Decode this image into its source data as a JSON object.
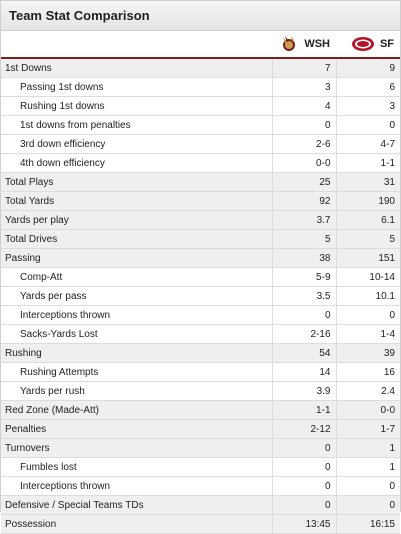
{
  "title": "Team Stat Comparison",
  "teams": [
    {
      "abbr": "WSH",
      "logo": "redskins-logo-icon"
    },
    {
      "abbr": "SF",
      "logo": "49ers-logo-icon"
    }
  ],
  "rows": [
    {
      "label": "1st Downs",
      "main": true,
      "wsh": "7",
      "sf": "9"
    },
    {
      "label": "Passing 1st downs",
      "main": false,
      "wsh": "3",
      "sf": "6"
    },
    {
      "label": "Rushing 1st downs",
      "main": false,
      "wsh": "4",
      "sf": "3"
    },
    {
      "label": "1st downs from penalties",
      "main": false,
      "wsh": "0",
      "sf": "0"
    },
    {
      "label": "3rd down efficiency",
      "main": false,
      "wsh": "2-6",
      "sf": "4-7"
    },
    {
      "label": "4th down efficiency",
      "main": false,
      "wsh": "0-0",
      "sf": "1-1"
    },
    {
      "label": "Total Plays",
      "main": true,
      "wsh": "25",
      "sf": "31"
    },
    {
      "label": "Total Yards",
      "main": true,
      "wsh": "92",
      "sf": "190"
    },
    {
      "label": "Yards per play",
      "main": true,
      "wsh": "3.7",
      "sf": "6.1"
    },
    {
      "label": "Total Drives",
      "main": true,
      "wsh": "5",
      "sf": "5"
    },
    {
      "label": "Passing",
      "main": true,
      "wsh": "38",
      "sf": "151"
    },
    {
      "label": "Comp-Att",
      "main": false,
      "wsh": "5-9",
      "sf": "10-14"
    },
    {
      "label": "Yards per pass",
      "main": false,
      "wsh": "3.5",
      "sf": "10.1"
    },
    {
      "label": "Interceptions thrown",
      "main": false,
      "wsh": "0",
      "sf": "0"
    },
    {
      "label": "Sacks-Yards Lost",
      "main": false,
      "wsh": "2-16",
      "sf": "1-4"
    },
    {
      "label": "Rushing",
      "main": true,
      "wsh": "54",
      "sf": "39"
    },
    {
      "label": "Rushing Attempts",
      "main": false,
      "wsh": "14",
      "sf": "16"
    },
    {
      "label": "Yards per rush",
      "main": false,
      "wsh": "3.9",
      "sf": "2.4"
    },
    {
      "label": "Red Zone (Made-Att)",
      "main": true,
      "wsh": "1-1",
      "sf": "0-0"
    },
    {
      "label": "Penalties",
      "main": true,
      "wsh": "2-12",
      "sf": "1-7"
    },
    {
      "label": "Turnovers",
      "main": true,
      "wsh": "0",
      "sf": "1"
    },
    {
      "label": "Fumbles lost",
      "main": false,
      "wsh": "0",
      "sf": "1"
    },
    {
      "label": "Interceptions thrown",
      "main": false,
      "wsh": "0",
      "sf": "0"
    },
    {
      "label": "Defensive / Special Teams TDs",
      "main": true,
      "wsh": "0",
      "sf": "0"
    },
    {
      "label": "Possession",
      "main": true,
      "wsh": "13:45",
      "sf": "16:15"
    }
  ]
}
